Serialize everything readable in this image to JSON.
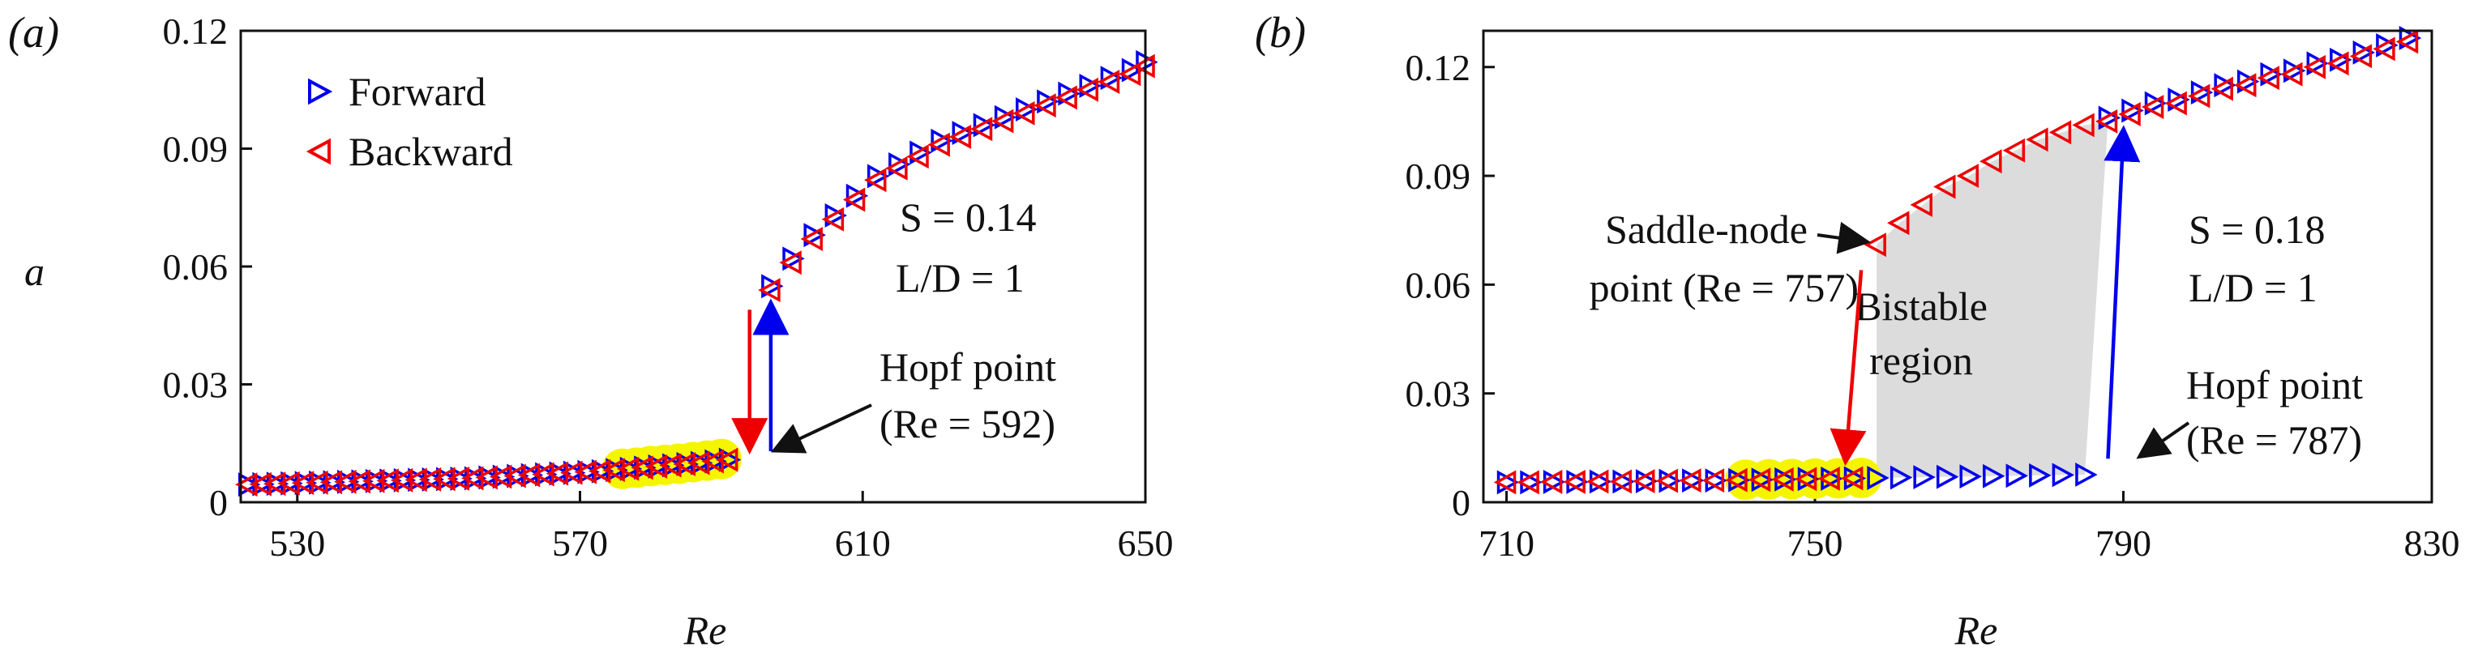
{
  "colors": {
    "forward": "#0000ee",
    "backward": "#ee0000",
    "highlight": "#f5f500",
    "bistable": "#dcdcdc",
    "axis": "#111111"
  },
  "chart_data": [
    {
      "panel_label": "(a)",
      "type": "scatter",
      "xlabel": "Re",
      "ylabel": "a",
      "xlim": [
        522,
        650
      ],
      "ylim": [
        0,
        0.12
      ],
      "xticks": [
        "530",
        "570",
        "610",
        "650"
      ],
      "xtick_values": [
        530,
        570,
        610,
        650
      ],
      "yticks": [
        "0",
        "0.03",
        "0.06",
        "0.09",
        "0.12"
      ],
      "ytick_values": [
        0,
        0.03,
        0.06,
        0.09,
        0.12
      ],
      "legend": {
        "position": "top-left",
        "entries": [
          {
            "key": "forward",
            "label": "Forward",
            "marker": "triangle-right"
          },
          {
            "key": "backward",
            "label": "Backward",
            "marker": "triangle-left"
          }
        ]
      },
      "params": {
        "S": "S = 0.14",
        "LD": "L/D = 1"
      },
      "hopf": {
        "title": "Hopf point",
        "detail": "(Re = 592)",
        "re": 592
      },
      "arrows": [
        {
          "color": "backward",
          "x1": 594,
          "y1": 0.049,
          "x2": 594,
          "y2": 0.014
        },
        {
          "color": "forward",
          "x1": 597,
          "y1": 0.013,
          "x2": 597,
          "y2": 0.05
        }
      ],
      "highlight_points": [
        {
          "x": 576,
          "y": 0.0085
        },
        {
          "x": 578,
          "y": 0.0088
        },
        {
          "x": 580,
          "y": 0.0092
        },
        {
          "x": 582,
          "y": 0.0095
        },
        {
          "x": 584,
          "y": 0.0098
        },
        {
          "x": 586,
          "y": 0.0102
        },
        {
          "x": 588,
          "y": 0.0106
        },
        {
          "x": 590,
          "y": 0.011
        }
      ],
      "series": [
        {
          "name": "Forward",
          "key": "forward",
          "x": [
            523,
            525,
            527,
            529,
            531,
            533,
            535,
            537,
            539,
            541,
            543,
            545,
            547,
            549,
            551,
            553,
            555,
            557,
            559,
            561,
            563,
            565,
            567,
            569,
            571,
            573,
            575,
            577,
            579,
            581,
            583,
            585,
            587,
            589,
            591,
            597,
            600,
            603,
            606,
            609,
            612,
            615,
            618,
            621,
            624,
            627,
            630,
            633,
            636,
            639,
            642,
            645,
            648,
            650
          ],
          "y": [
            0.0045,
            0.0046,
            0.0047,
            0.0048,
            0.0049,
            0.005,
            0.0051,
            0.0052,
            0.0053,
            0.0054,
            0.0055,
            0.0056,
            0.0057,
            0.0058,
            0.0059,
            0.006,
            0.0061,
            0.0063,
            0.0065,
            0.0067,
            0.0069,
            0.0071,
            0.0073,
            0.0075,
            0.0077,
            0.0079,
            0.0082,
            0.0085,
            0.0088,
            0.0091,
            0.0094,
            0.0097,
            0.01,
            0.0104,
            0.0108,
            0.055,
            0.062,
            0.068,
            0.073,
            0.078,
            0.083,
            0.086,
            0.089,
            0.092,
            0.094,
            0.096,
            0.098,
            0.1,
            0.102,
            0.104,
            0.106,
            0.108,
            0.11,
            0.112
          ]
        },
        {
          "name": "Backward",
          "key": "backward",
          "x": [
            523,
            525,
            527,
            529,
            531,
            533,
            535,
            537,
            539,
            541,
            543,
            545,
            547,
            549,
            551,
            553,
            555,
            557,
            559,
            561,
            563,
            565,
            567,
            569,
            571,
            573,
            575,
            577,
            579,
            581,
            583,
            585,
            587,
            589,
            591,
            597,
            600,
            603,
            606,
            609,
            612,
            615,
            618,
            621,
            624,
            627,
            630,
            633,
            636,
            639,
            642,
            645,
            648,
            650
          ],
          "y": [
            0.0045,
            0.0046,
            0.0047,
            0.0048,
            0.0049,
            0.005,
            0.0051,
            0.0052,
            0.0053,
            0.0054,
            0.0055,
            0.0056,
            0.0057,
            0.0058,
            0.0059,
            0.006,
            0.0061,
            0.0063,
            0.0065,
            0.0067,
            0.0069,
            0.0071,
            0.0073,
            0.0075,
            0.0077,
            0.0079,
            0.0082,
            0.0085,
            0.0088,
            0.0091,
            0.0094,
            0.0097,
            0.01,
            0.0104,
            0.0108,
            0.054,
            0.061,
            0.067,
            0.072,
            0.077,
            0.082,
            0.085,
            0.088,
            0.091,
            0.093,
            0.095,
            0.097,
            0.099,
            0.101,
            0.103,
            0.105,
            0.107,
            0.109,
            0.111
          ]
        }
      ]
    },
    {
      "panel_label": "(b)",
      "type": "scatter",
      "xlabel": "Re",
      "ylabel": "",
      "xlim": [
        707,
        830
      ],
      "ylim": [
        0,
        0.13
      ],
      "xticks": [
        "710",
        "750",
        "790",
        "830"
      ],
      "xtick_values": [
        710,
        750,
        790,
        830
      ],
      "yticks": [
        "0",
        "0.03",
        "0.06",
        "0.09",
        "0.12"
      ],
      "ytick_values": [
        0,
        0.03,
        0.06,
        0.09,
        0.12
      ],
      "params": {
        "S": "S = 0.18",
        "LD": "L/D = 1"
      },
      "saddle": {
        "title": "Saddle-node",
        "detail": "point (Re = 757)",
        "re": 757
      },
      "hopf": {
        "title": "Hopf point",
        "detail": "(Re = 787)",
        "re": 787
      },
      "bistable": {
        "line1": "Bistable",
        "line2": "region"
      },
      "arrows": [
        {
          "color": "backward",
          "x1": 756,
          "y1": 0.064,
          "x2": 754,
          "y2": 0.012
        },
        {
          "color": "forward",
          "x1": 788,
          "y1": 0.012,
          "x2": 790,
          "y2": 0.102
        }
      ],
      "highlight_points": [
        {
          "x": 741,
          "y": 0.0062
        },
        {
          "x": 744,
          "y": 0.0063
        },
        {
          "x": 747,
          "y": 0.0064
        },
        {
          "x": 750,
          "y": 0.0065
        },
        {
          "x": 753,
          "y": 0.0066
        },
        {
          "x": 756,
          "y": 0.0067
        }
      ],
      "series": [
        {
          "name": "Forward",
          "key": "forward",
          "x": [
            710,
            713,
            716,
            719,
            722,
            725,
            728,
            731,
            734,
            737,
            740,
            743,
            746,
            749,
            752,
            755,
            758,
            761,
            764,
            767,
            770,
            773,
            776,
            779,
            782,
            785,
            788,
            791,
            794,
            797,
            800,
            803,
            806,
            809,
            812,
            815,
            818,
            821,
            824,
            827
          ],
          "y": [
            0.0055,
            0.0055,
            0.0056,
            0.0056,
            0.0057,
            0.0057,
            0.0058,
            0.0059,
            0.006,
            0.006,
            0.0061,
            0.0062,
            0.0063,
            0.0064,
            0.0065,
            0.0066,
            0.0067,
            0.0068,
            0.0069,
            0.007,
            0.0071,
            0.0072,
            0.0073,
            0.0074,
            0.0075,
            0.0076,
            0.106,
            0.108,
            0.11,
            0.111,
            0.113,
            0.115,
            0.116,
            0.118,
            0.119,
            0.121,
            0.122,
            0.124,
            0.126,
            0.128
          ]
        },
        {
          "name": "Backward",
          "key": "backward",
          "x": [
            710,
            713,
            716,
            719,
            722,
            725,
            728,
            731,
            734,
            737,
            740,
            743,
            746,
            749,
            752,
            755,
            758,
            761,
            764,
            767,
            770,
            773,
            776,
            779,
            782,
            785,
            788,
            791,
            794,
            797,
            800,
            803,
            806,
            809,
            812,
            815,
            818,
            821,
            824,
            827
          ],
          "y": [
            0.0055,
            0.0055,
            0.0056,
            0.0056,
            0.0057,
            0.0057,
            0.0058,
            0.0059,
            0.006,
            0.006,
            0.0061,
            0.0062,
            0.0063,
            0.0064,
            0.0065,
            0.0066,
            0.071,
            0.077,
            0.082,
            0.087,
            0.09,
            0.094,
            0.097,
            0.1,
            0.102,
            0.104,
            0.105,
            0.107,
            0.109,
            0.11,
            0.112,
            0.114,
            0.115,
            0.117,
            0.118,
            0.12,
            0.121,
            0.123,
            0.125,
            0.127
          ]
        }
      ]
    }
  ]
}
